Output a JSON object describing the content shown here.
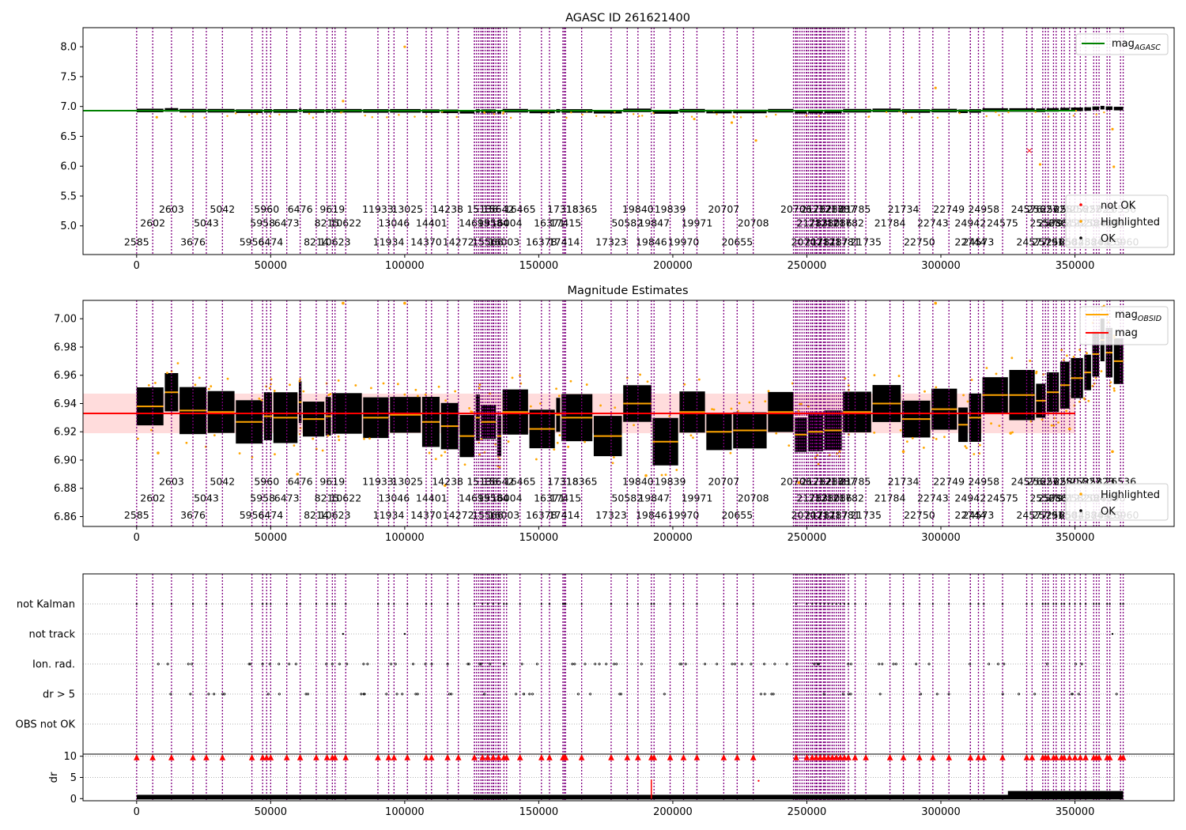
{
  "figure": {
    "top_title": "AGASC ID 261621400",
    "mid_title": "Magnitude Estimates"
  },
  "colors": {
    "obsid_line": "#800080",
    "ok": "#000000",
    "highlighted": "#ffa500",
    "not_ok": "#ff0000",
    "agasc_line": "#008000",
    "mag_line": "#ff0000",
    "obsid_mag_line": "#ffa500",
    "band_fill": "#ffc0c0",
    "grid": "#b0b0b0"
  },
  "chart_data": [
    {
      "id": "top",
      "type": "scatter",
      "title": "AGASC ID 261621400",
      "xlim": [
        -20000,
        387000
      ],
      "ylim": [
        4.52,
        8.32
      ],
      "xticks": [
        0,
        50000,
        100000,
        150000,
        200000,
        250000,
        300000,
        350000,
        400000
      ],
      "yticks": [
        5.0,
        5.5,
        6.0,
        6.5,
        7.0,
        7.5,
        8.0
      ],
      "ytick_labels": [
        "5.0",
        "5.5",
        "6.0",
        "6.5",
        "7.0",
        "7.5",
        "8.0"
      ],
      "mag_agasc": 6.93,
      "series": [
        {
          "name": "not OK",
          "points": [
            [
              333000,
              6.27
            ]
          ]
        },
        {
          "name": "Highlighted",
          "points": [
            [
              7500,
              6.82
            ],
            [
              77000,
              7.09
            ],
            [
              100000,
              8.0
            ],
            [
              208000,
              6.79
            ],
            [
              222000,
              6.73
            ],
            [
              231000,
              6.43
            ],
            [
              298000,
              7.31
            ],
            [
              337000,
              6.03
            ],
            [
              364000,
              6.62
            ],
            [
              364500,
              5.99
            ]
          ]
        },
        {
          "name": "OK"
        }
      ],
      "legend_line": {
        "label": "mag",
        "sub": "AGASC"
      },
      "legend_points": [
        "not OK",
        "Highlighted",
        "OK"
      ]
    },
    {
      "id": "middle",
      "type": "scatter",
      "title": "Magnitude Estimates",
      "xlim": [
        -20000,
        387000
      ],
      "ylim": [
        6.853,
        7.013
      ],
      "xticks": [
        0,
        50000,
        100000,
        150000,
        200000,
        250000,
        300000,
        350000,
        400000
      ],
      "yticks": [
        6.86,
        6.88,
        6.9,
        6.92,
        6.94,
        6.96,
        6.98,
        7.0
      ],
      "ytick_labels": [
        "6.86",
        "6.88",
        "6.90",
        "6.92",
        "6.94",
        "6.96",
        "6.98",
        "7.00"
      ],
      "mag": 6.933,
      "mag_band": [
        6.919,
        6.947
      ],
      "obsid_segments": [
        [
          0,
          10000,
          6.938
        ],
        [
          10500,
          15500,
          6.948
        ],
        [
          16000,
          26000,
          6.935
        ],
        [
          26500,
          36500,
          6.934
        ],
        [
          37000,
          47000,
          6.927
        ],
        [
          47500,
          50500,
          6.931
        ],
        [
          51000,
          60000,
          6.93
        ],
        [
          60500,
          61500,
          6.941
        ],
        [
          62000,
          70000,
          6.929
        ],
        [
          70500,
          72500,
          6.931
        ],
        [
          73000,
          84000,
          6.933
        ],
        [
          84500,
          94000,
          6.93
        ],
        [
          94500,
          106000,
          6.932
        ],
        [
          106500,
          113000,
          6.927
        ],
        [
          113500,
          120000,
          6.924
        ],
        [
          120500,
          126000,
          6.917
        ],
        [
          126500,
          128000,
          6.93
        ],
        [
          128500,
          134000,
          6.927
        ],
        [
          134500,
          136000,
          6.917
        ],
        [
          136500,
          146000,
          6.934
        ],
        [
          146500,
          156000,
          6.922
        ],
        [
          156500,
          158000,
          6.932
        ],
        [
          158500,
          170000,
          6.93
        ],
        [
          170500,
          181000,
          6.917
        ],
        [
          181500,
          192000,
          6.94
        ],
        [
          192500,
          202000,
          6.913
        ],
        [
          202500,
          212000,
          6.934
        ],
        [
          212500,
          222000,
          6.92
        ],
        [
          222500,
          235000,
          6.921
        ],
        [
          235500,
          245000,
          6.934
        ],
        [
          245500,
          250000,
          6.918
        ],
        [
          250500,
          256000,
          6.92
        ],
        [
          256500,
          263000,
          6.921
        ],
        [
          263500,
          274000,
          6.934
        ],
        [
          274500,
          285000,
          6.94
        ],
        [
          285500,
          296000,
          6.929
        ],
        [
          296500,
          306000,
          6.936
        ],
        [
          306500,
          310000,
          6.925
        ],
        [
          310500,
          315000,
          6.93
        ],
        [
          315500,
          325000,
          6.946
        ],
        [
          325500,
          335000,
          6.946
        ],
        [
          335500,
          339000,
          6.942
        ],
        [
          339500,
          344000,
          6.948
        ],
        [
          344500,
          348000,
          6.953
        ],
        [
          348500,
          353000,
          6.958
        ],
        [
          353500,
          356000,
          6.962
        ],
        [
          356500,
          359000,
          6.975
        ],
        [
          359500,
          361000,
          6.985
        ],
        [
          361500,
          364000,
          6.976
        ],
        [
          364500,
          368000,
          6.97
        ]
      ],
      "series": [
        {
          "name": "Highlighted",
          "points": [
            [
              77000,
              7.011
            ],
            [
              100000,
              7.011
            ],
            [
              298000,
              7.011
            ],
            [
              8000,
              6.905
            ],
            [
              60000,
              6.89
            ],
            [
              115000,
              6.882
            ],
            [
              190000,
              6.889
            ],
            [
              247000,
              6.884
            ],
            [
              286000,
              6.906
            ],
            [
              326000,
              6.919
            ],
            [
              348000,
              6.922
            ],
            [
              364000,
              6.906
            ]
          ]
        },
        {
          "name": "OK"
        }
      ],
      "legend_lines": [
        {
          "label": "mag",
          "sub": "OBSID"
        },
        {
          "label": "mag",
          "sub": ""
        }
      ],
      "legend_points": [
        "Highlighted",
        "OK"
      ]
    },
    {
      "id": "flags",
      "type": "scatter",
      "ylabels": [
        "not Kalman",
        "not track",
        "Ion. rad.",
        "dr > 5",
        "OBS not OK"
      ],
      "xlim": [
        -20000,
        387000
      ]
    },
    {
      "id": "dr",
      "type": "scatter",
      "ylabel": "dr",
      "xlim": [
        -20000,
        387000
      ],
      "ylim": [
        -0.5,
        10.5
      ],
      "yticks": [
        0,
        5,
        10
      ],
      "ytick_labels": [
        "0",
        "5",
        "10"
      ],
      "xticks": [
        0,
        50000,
        100000,
        150000,
        200000,
        250000,
        300000,
        350000,
        400000
      ]
    }
  ],
  "obsid_annotations": [
    {
      "x": 0,
      "row": 0,
      "text": "2585"
    },
    {
      "x": 6000,
      "row": 1,
      "text": "2602"
    },
    {
      "x": 13000,
      "row": 2,
      "text": "2603"
    },
    {
      "x": 21000,
      "row": 0,
      "text": "3676"
    },
    {
      "x": 26000,
      "row": 1,
      "text": "5043"
    },
    {
      "x": 32000,
      "row": 2,
      "text": "5042"
    },
    {
      "x": 43000,
      "row": 0,
      "text": "5956"
    },
    {
      "x": 47000,
      "row": 1,
      "text": "5958"
    },
    {
      "x": 48500,
      "row": 2,
      "text": "5960"
    },
    {
      "x": 50000,
      "row": 0,
      "text": "6474"
    },
    {
      "x": 56000,
      "row": 1,
      "text": "6473"
    },
    {
      "x": 61000,
      "row": 2,
      "text": "6476"
    },
    {
      "x": 67000,
      "row": 0,
      "text": "8214"
    },
    {
      "x": 71000,
      "row": 1,
      "text": "8215"
    },
    {
      "x": 73000,
      "row": 2,
      "text": "9619"
    },
    {
      "x": 74000,
      "row": 0,
      "text": "10623"
    },
    {
      "x": 78000,
      "row": 1,
      "text": "10622"
    },
    {
      "x": 90000,
      "row": 2,
      "text": "11933"
    },
    {
      "x": 94000,
      "row": 0,
      "text": "11934"
    },
    {
      "x": 96000,
      "row": 1,
      "text": "13046"
    },
    {
      "x": 101000,
      "row": 2,
      "text": "13025"
    },
    {
      "x": 108000,
      "row": 0,
      "text": "14370"
    },
    {
      "x": 110000,
      "row": 1,
      "text": "14401"
    },
    {
      "x": 116000,
      "row": 2,
      "text": "14238"
    },
    {
      "x": 120000,
      "row": 0,
      "text": "14272"
    },
    {
      "x": 126000,
      "row": 1,
      "text": "14699"
    },
    {
      "x": 129000,
      "row": 2,
      "text": "15136"
    },
    {
      "x": 131000,
      "row": 0,
      "text": "15566"
    },
    {
      "x": 133000,
      "row": 1,
      "text": "15584"
    },
    {
      "x": 135000,
      "row": 2,
      "text": "15642"
    },
    {
      "x": 137000,
      "row": 0,
      "text": "16003"
    },
    {
      "x": 138000,
      "row": 1,
      "text": "16004"
    },
    {
      "x": 143000,
      "row": 2,
      "text": "16465"
    },
    {
      "x": 151000,
      "row": 0,
      "text": "16378"
    },
    {
      "x": 154000,
      "row": 1,
      "text": "16371"
    },
    {
      "x": 159000,
      "row": 2,
      "text": "17318"
    },
    {
      "x": 159500,
      "row": 0,
      "text": "17414"
    },
    {
      "x": 160000,
      "row": 1,
      "text": "17415"
    },
    {
      "x": 166000,
      "row": 2,
      "text": "18365"
    },
    {
      "x": 177000,
      "row": 0,
      "text": "17323"
    },
    {
      "x": 183000,
      "row": 1,
      "text": "50582"
    },
    {
      "x": 187000,
      "row": 2,
      "text": "19840"
    },
    {
      "x": 192000,
      "row": 0,
      "text": "19846"
    },
    {
      "x": 193000,
      "row": 1,
      "text": "19847"
    },
    {
      "x": 199000,
      "row": 2,
      "text": "19839"
    },
    {
      "x": 204000,
      "row": 0,
      "text": "19970"
    },
    {
      "x": 209000,
      "row": 1,
      "text": "19971"
    },
    {
      "x": 219000,
      "row": 2,
      "text": "20707"
    },
    {
      "x": 224000,
      "row": 0,
      "text": "20655"
    },
    {
      "x": 230000,
      "row": 1,
      "text": "20708"
    },
    {
      "x": 246000,
      "row": 2,
      "text": "20706"
    },
    {
      "x": 250000,
      "row": 0,
      "text": "20707"
    },
    {
      "x": 252000,
      "row": 1,
      "text": "21783"
    },
    {
      "x": 253500,
      "row": 2,
      "text": "21782"
    },
    {
      "x": 255000,
      "row": 0,
      "text": "21781"
    },
    {
      "x": 256500,
      "row": 1,
      "text": "21780"
    },
    {
      "x": 258000,
      "row": 2,
      "text": "21788"
    },
    {
      "x": 259500,
      "row": 0,
      "text": "21787"
    },
    {
      "x": 261000,
      "row": 1,
      "text": "21786"
    },
    {
      "x": 262500,
      "row": 2,
      "text": "21787"
    },
    {
      "x": 264000,
      "row": 0,
      "text": "21781"
    },
    {
      "x": 265500,
      "row": 1,
      "text": "21782"
    },
    {
      "x": 268000,
      "row": 2,
      "text": "21785"
    },
    {
      "x": 272000,
      "row": 0,
      "text": "21735"
    },
    {
      "x": 281000,
      "row": 1,
      "text": "21784"
    },
    {
      "x": 286000,
      "row": 2,
      "text": "21734"
    },
    {
      "x": 292000,
      "row": 0,
      "text": "22750"
    },
    {
      "x": 297000,
      "row": 1,
      "text": "22743"
    },
    {
      "x": 303000,
      "row": 2,
      "text": "22749"
    },
    {
      "x": 311000,
      "row": 0,
      "text": "22744"
    },
    {
      "x": 311000,
      "row": 1,
      "text": "24942"
    },
    {
      "x": 316000,
      "row": 2,
      "text": "24958"
    },
    {
      "x": 314000,
      "row": 0,
      "text": "24573"
    },
    {
      "x": 323000,
      "row": 1,
      "text": "24575"
    },
    {
      "x": 332000,
      "row": 2,
      "text": "24576"
    },
    {
      "x": 334000,
      "row": 0,
      "text": "24577"
    },
    {
      "x": 339000,
      "row": 1,
      "text": "25568"
    },
    {
      "x": 338000,
      "row": 2,
      "text": "25627"
    },
    {
      "x": 340000,
      "row": 0,
      "text": "25791"
    },
    {
      "x": 342000,
      "row": 1,
      "text": "25795"
    },
    {
      "x": 343000,
      "row": 2,
      "text": "25625"
    },
    {
      "x": 345000,
      "row": 0,
      "text": "25650"
    },
    {
      "x": 346000,
      "row": 1,
      "text": "25812"
    },
    {
      "x": 348000,
      "row": 2,
      "text": "25807"
    },
    {
      "x": 350000,
      "row": 0,
      "text": "25848"
    },
    {
      "x": 352000,
      "row": 1,
      "text": "25820"
    },
    {
      "x": 354000,
      "row": 2,
      "text": "25827"
    },
    {
      "x": 357000,
      "row": 0,
      "text": "25843"
    },
    {
      "x": 358000,
      "row": 1,
      "text": "25843"
    },
    {
      "x": 359000,
      "row": 2,
      "text": "25823"
    },
    {
      "x": 362000,
      "row": 0,
      "text": "26439"
    },
    {
      "x": 363000,
      "row": 1,
      "text": "26096"
    },
    {
      "x": 367000,
      "row": 2,
      "text": "26536"
    },
    {
      "x": 368000,
      "row": 0,
      "text": "26960"
    }
  ],
  "obsid_dense_ranges": [
    [
      126000,
      136000
    ],
    [
      245000,
      264000
    ]
  ]
}
